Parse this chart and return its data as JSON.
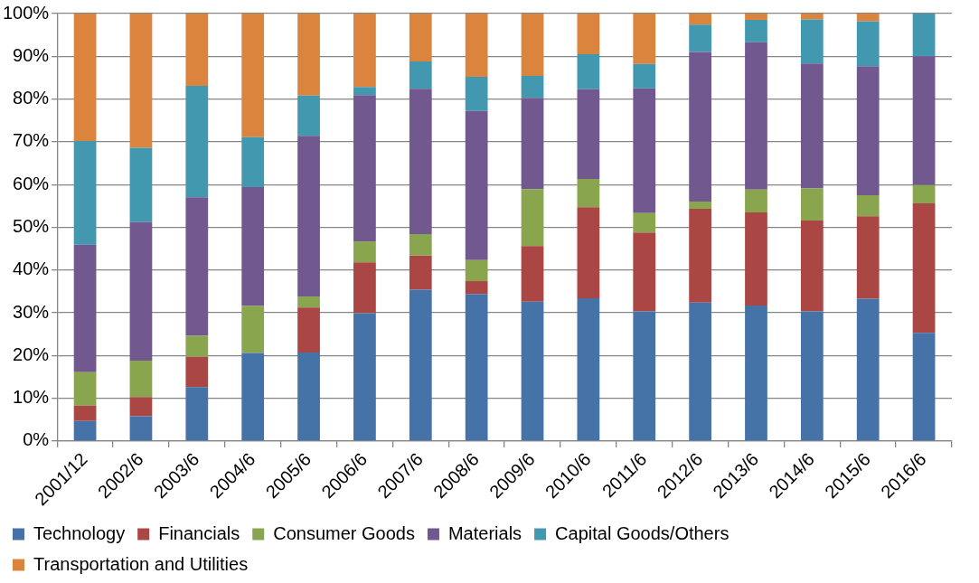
{
  "chart_data": {
    "type": "bar",
    "stacked": true,
    "categories": [
      "2001/12",
      "2002/6",
      "2003/6",
      "2004/6",
      "2005/6",
      "2006/6",
      "2007/6",
      "2008/6",
      "2009/6",
      "2010/6",
      "2011/6",
      "2012/6",
      "2013/6",
      "2014/6",
      "2015/6",
      "2016/6"
    ],
    "series": [
      {
        "name": "Technology",
        "color": "#4572a7",
        "values": [
          4.7,
          5.8,
          12.6,
          20.6,
          20.7,
          29.9,
          35.4,
          34.4,
          32.6,
          33.4,
          30.3,
          32.4,
          31.7,
          30.3,
          33.3,
          25.3
        ]
      },
      {
        "name": "Financials",
        "color": "#aa4643",
        "values": [
          3.6,
          4.5,
          7.1,
          0,
          10.5,
          11.9,
          8.0,
          3.0,
          13.0,
          21.3,
          18.5,
          21.9,
          21.8,
          21.3,
          19.3,
          30.3
        ]
      },
      {
        "name": "Consumer Goods",
        "color": "#89a54e",
        "values": [
          7.8,
          8.5,
          4.9,
          11.0,
          2.6,
          4.9,
          5.0,
          4.9,
          13.3,
          6.6,
          4.5,
          1.7,
          5.3,
          7.5,
          4.9,
          4.3
        ]
      },
      {
        "name": "Materials",
        "color": "#71588f",
        "values": [
          29.8,
          32.4,
          32.4,
          27.8,
          37.6,
          34.2,
          34.0,
          34.9,
          21.4,
          21.0,
          29.2,
          35.0,
          34.5,
          29.2,
          30.2,
          30.1
        ]
      },
      {
        "name": "Capital Goods/Others",
        "color": "#4198af",
        "values": [
          24.3,
          17.4,
          26.1,
          11.7,
          9.4,
          1.9,
          6.4,
          8.0,
          5.1,
          8.2,
          5.7,
          6.4,
          5.2,
          10.3,
          10.5,
          10.0
        ]
      },
      {
        "name": "Transportation and Utilities",
        "color": "#db843d",
        "values": [
          29.8,
          31.4,
          16.9,
          28.9,
          19.2,
          17.2,
          11.2,
          14.8,
          14.6,
          9.5,
          11.8,
          2.6,
          1.5,
          1.4,
          1.8,
          0
        ]
      }
    ],
    "ylim": [
      0,
      100
    ],
    "yticks": [
      {
        "value": 0,
        "label": "0%"
      },
      {
        "value": 10,
        "label": "10%"
      },
      {
        "value": 20,
        "label": "20%"
      },
      {
        "value": 30,
        "label": "30%"
      },
      {
        "value": 40,
        "label": "40%"
      },
      {
        "value": 50,
        "label": "50%"
      },
      {
        "value": 60,
        "label": "60%"
      },
      {
        "value": 70,
        "label": "70%"
      },
      {
        "value": 80,
        "label": "80%"
      },
      {
        "value": 90,
        "label": "90%"
      },
      {
        "value": 100,
        "label": "100%"
      }
    ],
    "grid": "y",
    "legend": "bottom"
  }
}
